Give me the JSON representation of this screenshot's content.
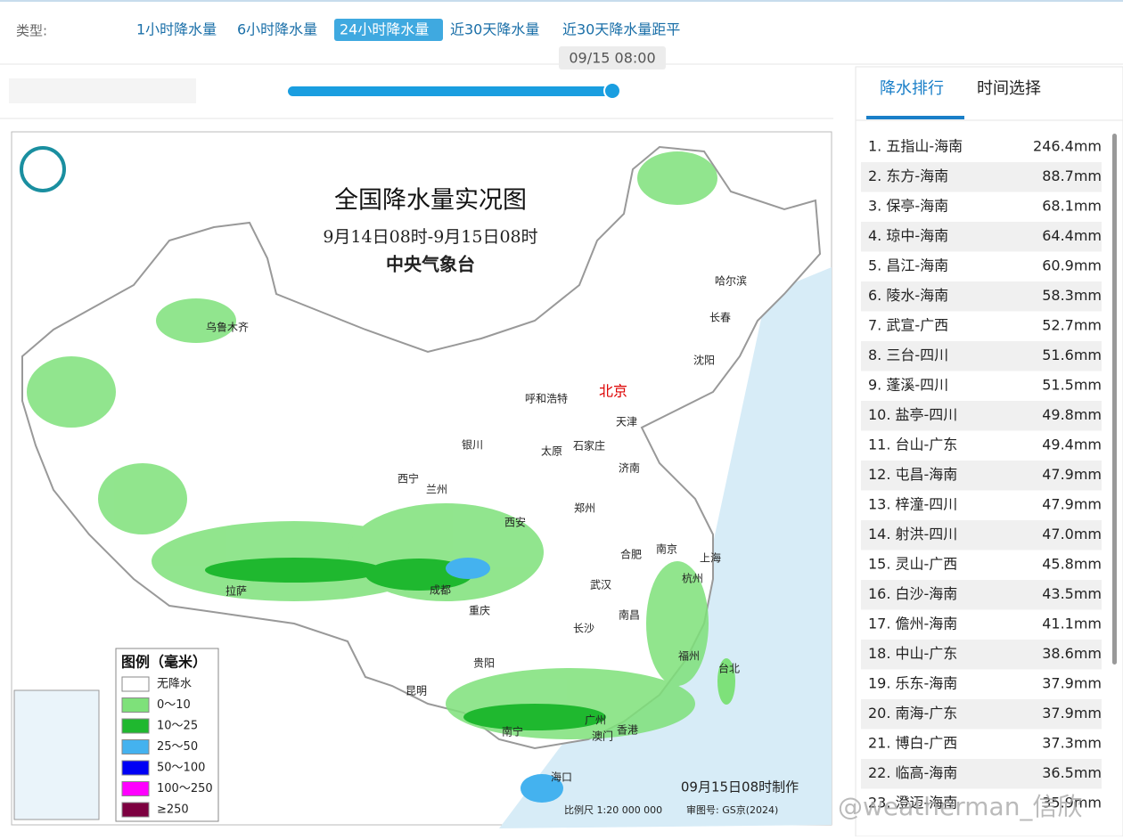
{
  "filter": {
    "label": "类型:",
    "tabs": [
      "1小时降水量",
      "6小时降水量",
      "24小时降水量",
      "近30天降水量",
      "近30天降水量距平"
    ],
    "active": 2
  },
  "slider": {
    "time": "09/15 08:00"
  },
  "map": {
    "title": "全国降水量实况图",
    "subtitle": "9月14日08时-9月15日08时",
    "agency": "中央气象台",
    "legend": {
      "title": "图例（毫米）",
      "items": [
        {
          "label": "无降水",
          "color": "#ffffff"
        },
        {
          "label": "0～10",
          "color": "#7ee17a"
        },
        {
          "label": "10～25",
          "color": "#1fb82f"
        },
        {
          "label": "25～50",
          "color": "#44b2ef"
        },
        {
          "label": "50～100",
          "color": "#0000f5"
        },
        {
          "label": "100～250",
          "color": "#ff00ff"
        },
        {
          "label": "≥250",
          "color": "#7d0040"
        }
      ]
    },
    "cities": [
      "乌鲁木齐",
      "哈尔滨",
      "长春",
      "沈阳",
      "北京",
      "呼和浩特",
      "天津",
      "银川",
      "太原",
      "石家庄",
      "济南",
      "西宁",
      "兰州",
      "郑州",
      "西安",
      "合肥",
      "南京",
      "上海",
      "成都",
      "武汉",
      "杭州",
      "拉萨",
      "重庆",
      "南昌",
      "长沙",
      "福州",
      "台北",
      "贵阳",
      "昆明",
      "广州",
      "南宁",
      "澳门",
      "香港",
      "海口"
    ],
    "made": "09月15日08时制作",
    "scale": "比例尺 1:20 000 000",
    "approval": "审图号: GS京(2024)"
  },
  "panel": {
    "tabs": [
      "降水排行",
      "时间选择"
    ],
    "active": 0,
    "ranking": [
      {
        "label": "1. 五指山-海南",
        "value": "246.4mm"
      },
      {
        "label": "2. 东方-海南",
        "value": "88.7mm"
      },
      {
        "label": "3. 保亭-海南",
        "value": "68.1mm"
      },
      {
        "label": "4. 琼中-海南",
        "value": "64.4mm"
      },
      {
        "label": "5. 昌江-海南",
        "value": "60.9mm"
      },
      {
        "label": "6. 陵水-海南",
        "value": "58.3mm"
      },
      {
        "label": "7. 武宣-广西",
        "value": "52.7mm"
      },
      {
        "label": "8. 三台-四川",
        "value": "51.6mm"
      },
      {
        "label": "9. 蓬溪-四川",
        "value": "51.5mm"
      },
      {
        "label": "10. 盐亭-四川",
        "value": "49.8mm"
      },
      {
        "label": "11. 台山-广东",
        "value": "49.4mm"
      },
      {
        "label": "12. 屯昌-海南",
        "value": "47.9mm"
      },
      {
        "label": "13. 梓潼-四川",
        "value": "47.9mm"
      },
      {
        "label": "14. 射洪-四川",
        "value": "47.0mm"
      },
      {
        "label": "15. 灵山-广西",
        "value": "45.8mm"
      },
      {
        "label": "16. 白沙-海南",
        "value": "43.5mm"
      },
      {
        "label": "17. 儋州-海南",
        "value": "41.1mm"
      },
      {
        "label": "18. 中山-广东",
        "value": "38.6mm"
      },
      {
        "label": "19. 乐东-海南",
        "value": "37.9mm"
      },
      {
        "label": "20. 南海-广东",
        "value": "37.9mm"
      },
      {
        "label": "21. 博白-广西",
        "value": "37.3mm"
      },
      {
        "label": "22. 临高-海南",
        "value": "36.5mm"
      },
      {
        "label": "23. 澄迈-海南",
        "value": "35.9mm"
      }
    ]
  },
  "watermark": "@weatherman_信欣"
}
